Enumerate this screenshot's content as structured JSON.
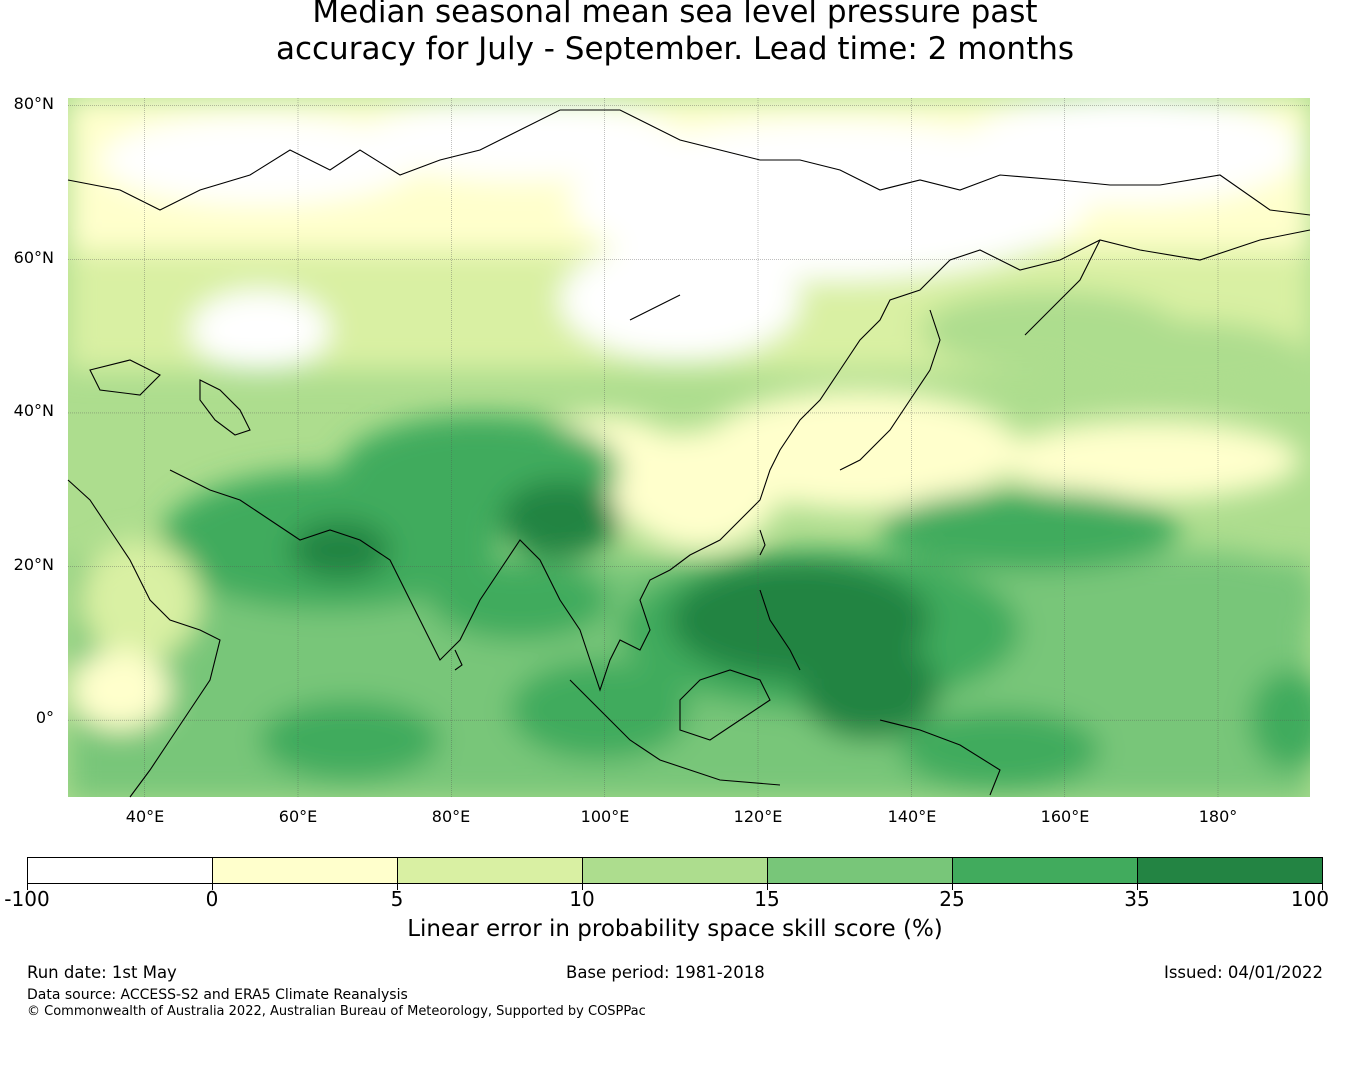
{
  "title": {
    "line1": "Median seasonal mean sea level pressure past",
    "line2": "accuracy for July - September. Lead time: 2 months"
  },
  "map": {
    "lon_range": [
      30,
      192
    ],
    "lat_range": [
      -10,
      81
    ],
    "lat_labels": [
      "80°N",
      "60°N",
      "40°N",
      "20°N",
      "0°"
    ],
    "lat_values": [
      80,
      60,
      40,
      20,
      0
    ],
    "lon_labels": [
      "40°E",
      "60°E",
      "80°E",
      "100°E",
      "120°E",
      "140°E",
      "160°E",
      "180°"
    ],
    "lon_values": [
      40,
      60,
      80,
      100,
      120,
      140,
      160,
      180
    ],
    "fill_colors": [
      "#ffffff",
      "#ffffcc",
      "#d9f0a3",
      "#addd8e",
      "#78c679",
      "#41ab5d",
      "#238443"
    ]
  },
  "colorbar": {
    "ticks": [
      "-100",
      "0",
      "5",
      "10",
      "15",
      "25",
      "35",
      "100"
    ],
    "colors": [
      "#ffffff",
      "#ffffcc",
      "#d9f0a3",
      "#addd8e",
      "#78c679",
      "#41ab5d",
      "#238443"
    ],
    "label": "Linear error in probability space skill score (%)"
  },
  "footer": {
    "run_date": "Run date: 1st May",
    "base_period": "Base period: 1981-2018",
    "issued": "Issued: 04/01/2022",
    "data_source": "Data source: ACCESS-S2 and ERA5 Climate Reanalysis",
    "copyright": "© Commonwealth of Australia 2022, Australian Bureau of Meteorology, Supported by COSPPac"
  }
}
